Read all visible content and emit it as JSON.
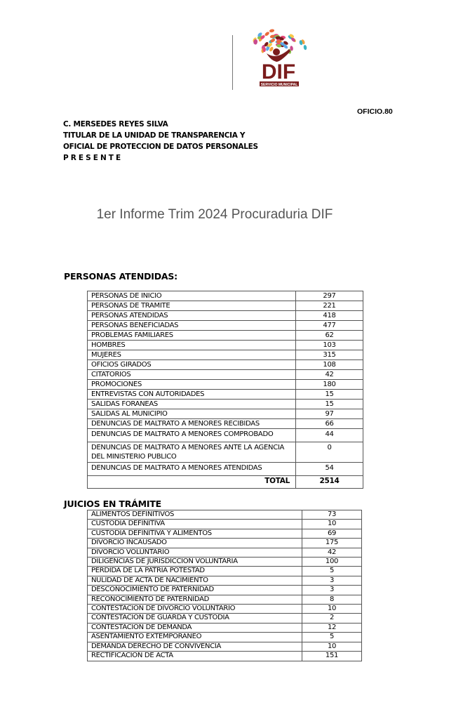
{
  "header": {
    "logo_text": "DIF",
    "logo_subtext": "SERVICIO MUNICIPAL",
    "oficio": "OFICIO.80"
  },
  "address": {
    "line1": "C. MERSEDES REYES SILVA",
    "line2": "TITULAR DE LA UNIDAD DE TRANSPARENCIA Y",
    "line3": "OFICIAL DE PROTECCION DE DATOS PERSONALES",
    "line4": "P R E S E N T E"
  },
  "title": "1er Informe Trim 2024 Procuraduria DIF",
  "personas": {
    "heading": "PERSONAS ATENDIDAS:",
    "rows": [
      {
        "label": "PERSONAS DE INICIO",
        "value": "297"
      },
      {
        "label": "PERSONAS DE TRAMITE",
        "value": "221"
      },
      {
        "label": "PERSONAS ATENDIDAS",
        "value": "418"
      },
      {
        "label": "PERSONAS BENEFICIADAS",
        "value": "477"
      },
      {
        "label": "PROBLEMAS FAMILIARES",
        "value": "62"
      },
      {
        "label": "HOMBRES",
        "value": "103"
      },
      {
        "label": "MUJERES",
        "value": "315"
      },
      {
        "label": "OFICIOS GIRADOS",
        "value": "108"
      },
      {
        "label": "CITATORIOS",
        "value": "42"
      },
      {
        "label": "PROMOCIONES",
        "value": "180"
      },
      {
        "label": "ENTREVISTAS CON AUTORIDADES",
        "value": "15"
      },
      {
        "label": "SALIDAS FORANEAS",
        "value": "15"
      },
      {
        "label": "SALIDAS AL MUNICIPIO",
        "value": "97"
      },
      {
        "label": "DENUNCIAS DE MALTRATO A MENORES RECIBIDAS",
        "value": "66"
      },
      {
        "label": "DENUNCIAS DE MALTRATO A MENORES COMPROBADO",
        "value": "44"
      },
      {
        "label": "DENUNCIAS DE MALTRATO A MENORES ANTE LA AGENCIA DEL MINISTERIO PUBLICO",
        "value": "0"
      },
      {
        "label": "DENUNCIAS DE MALTRATO A MENORES ATENDIDAS",
        "value": "54"
      }
    ],
    "total_label": "TOTAL",
    "total_value": "2514"
  },
  "juicios": {
    "heading": "JUICIOS EN TRÁMITE",
    "rows": [
      {
        "label": "ALIMENTOS DEFINITIVOS",
        "value": "73"
      },
      {
        "label": "CUSTODIA DEFINITIVA",
        "value": "10"
      },
      {
        "label": "CUSTODIA DEFINITIVA Y ALIMENTOS",
        "value": "69"
      },
      {
        "label": "DIVORCIO INCAUSADO",
        "value": "175"
      },
      {
        "label": "DIVORCIO VOLUNTARIO",
        "value": "42"
      },
      {
        "label": "DILIGENCIAS DE JURISDICCION VOLUNTARIA",
        "value": "100"
      },
      {
        "label": "PERDIDA DE LA PATRIA POTESTAD",
        "value": "5"
      },
      {
        "label": "NULIDAD DE ACTA DE NACIMIENTO",
        "value": "3"
      },
      {
        "label": "DESCONOCIMIENTO DE PATERNIDAD",
        "value": "3"
      },
      {
        "label": "RECONOCIMIENTO DE PATERNIDAD",
        "value": "8"
      },
      {
        "label": "CONTESTACION DE DIVORCIO VOLUNTARIO",
        "value": "10"
      },
      {
        "label": "CONTESTACION DE GUARDA Y CUSTODIA",
        "value": "2"
      },
      {
        "label": "CONTESTACION DE DEMANDA",
        "value": "12"
      },
      {
        "label": "ASENTAMIENTO EXTEMPORANEO",
        "value": "5"
      },
      {
        "label": "DEMANDA DERECHO DE CONVIVENCIA",
        "value": "10"
      },
      {
        "label": "RECTIFICACION DE ACTA",
        "value": "151"
      }
    ]
  },
  "colors": {
    "logo_brand": "#7a1c1c"
  }
}
